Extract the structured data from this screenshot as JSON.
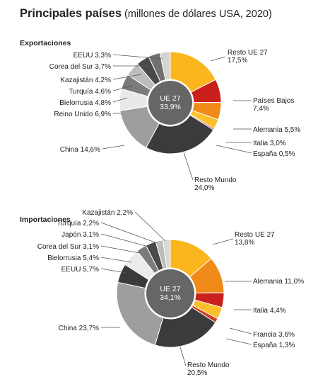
{
  "title": {
    "main": "Principales países",
    "sub": " (millones de dólares USA, 2020)"
  },
  "chart_data": [
    {
      "type": "pie",
      "title": "Exportaciones",
      "inner": {
        "label": "UE 27",
        "value": "33,9%"
      },
      "outer": [
        {
          "name": "Resto UE 27",
          "value": 17.5,
          "label": "17,5%",
          "color": "#fbb51d"
        },
        {
          "name": "Países Bajos",
          "value": 7.4,
          "label": "7,4%",
          "color": "#c9201c"
        },
        {
          "name": "Alemania",
          "value": 5.5,
          "label": "5,5%",
          "color": "#f08a18"
        },
        {
          "name": "Italia",
          "value": 3.0,
          "label": "3,0%",
          "color": "#fbc02a"
        },
        {
          "name": "España",
          "value": 0.5,
          "label": "0,5%",
          "color": "#cf3a1a"
        },
        {
          "name": "Resto Mundo",
          "value": 24.0,
          "label": "24,0%",
          "color": "#3b3b3e"
        },
        {
          "name": "China",
          "value": 14.6,
          "label": "14,6%",
          "color": "#9d9d9d"
        },
        {
          "name": "Reino Unido",
          "value": 6.9,
          "label": "6,9%",
          "color": "#e9e9e9"
        },
        {
          "name": "Bielorrusia",
          "value": 4.8,
          "label": "4,8%",
          "color": "#7b7b7b"
        },
        {
          "name": "Turquía",
          "value": 4.6,
          "label": "4,6%",
          "color": "#bdbdbd"
        },
        {
          "name": "Kazajistán",
          "value": 4.2,
          "label": "4,2%",
          "color": "#49494c"
        },
        {
          "name": "Corea del Sur",
          "value": 3.7,
          "label": "3,7%",
          "color": "#707070"
        },
        {
          "name": "EEUU",
          "value": 3.3,
          "label": "3,3%",
          "color": "#d4d4d4"
        }
      ]
    },
    {
      "type": "pie",
      "title": "Importaciones",
      "inner": {
        "label": "UE 27",
        "value": "34,1%"
      },
      "outer": [
        {
          "name": "Resto UE 27",
          "value": 13.8,
          "label": "13,8%",
          "color": "#fbb51d"
        },
        {
          "name": "Alemania",
          "value": 11.0,
          "label": "11,0%",
          "color": "#f08a18"
        },
        {
          "name": "Italia",
          "value": 4.4,
          "label": "4,4%",
          "color": "#c9201c"
        },
        {
          "name": "Francia",
          "value": 3.6,
          "label": "3,6%",
          "color": "#fbc02a"
        },
        {
          "name": "España",
          "value": 1.3,
          "label": "1,3%",
          "color": "#cf3a1a"
        },
        {
          "name": "Resto Mundo",
          "value": 20.5,
          "label": "20,5%",
          "color": "#3b3b3e"
        },
        {
          "name": "China",
          "value": 23.7,
          "label": "23,7%",
          "color": "#9d9d9d"
        },
        {
          "name": "EEUU",
          "value": 5.7,
          "label": "5,7%",
          "color": "#3b3b3e"
        },
        {
          "name": "Bielorrusia",
          "value": 5.4,
          "label": "5,4%",
          "color": "#ececec"
        },
        {
          "name": "Corea del Sur",
          "value": 3.1,
          "label": "3,1%",
          "color": "#7b7b7b"
        },
        {
          "name": "Japón",
          "value": 3.1,
          "label": "3,1%",
          "color": "#49494c"
        },
        {
          "name": "Turquía",
          "value": 2.2,
          "label": "2,2%",
          "color": "#bdbdbd"
        },
        {
          "name": "Kazajistán",
          "value": 2.2,
          "label": "2,2%",
          "color": "#d8d8d8"
        }
      ]
    }
  ]
}
